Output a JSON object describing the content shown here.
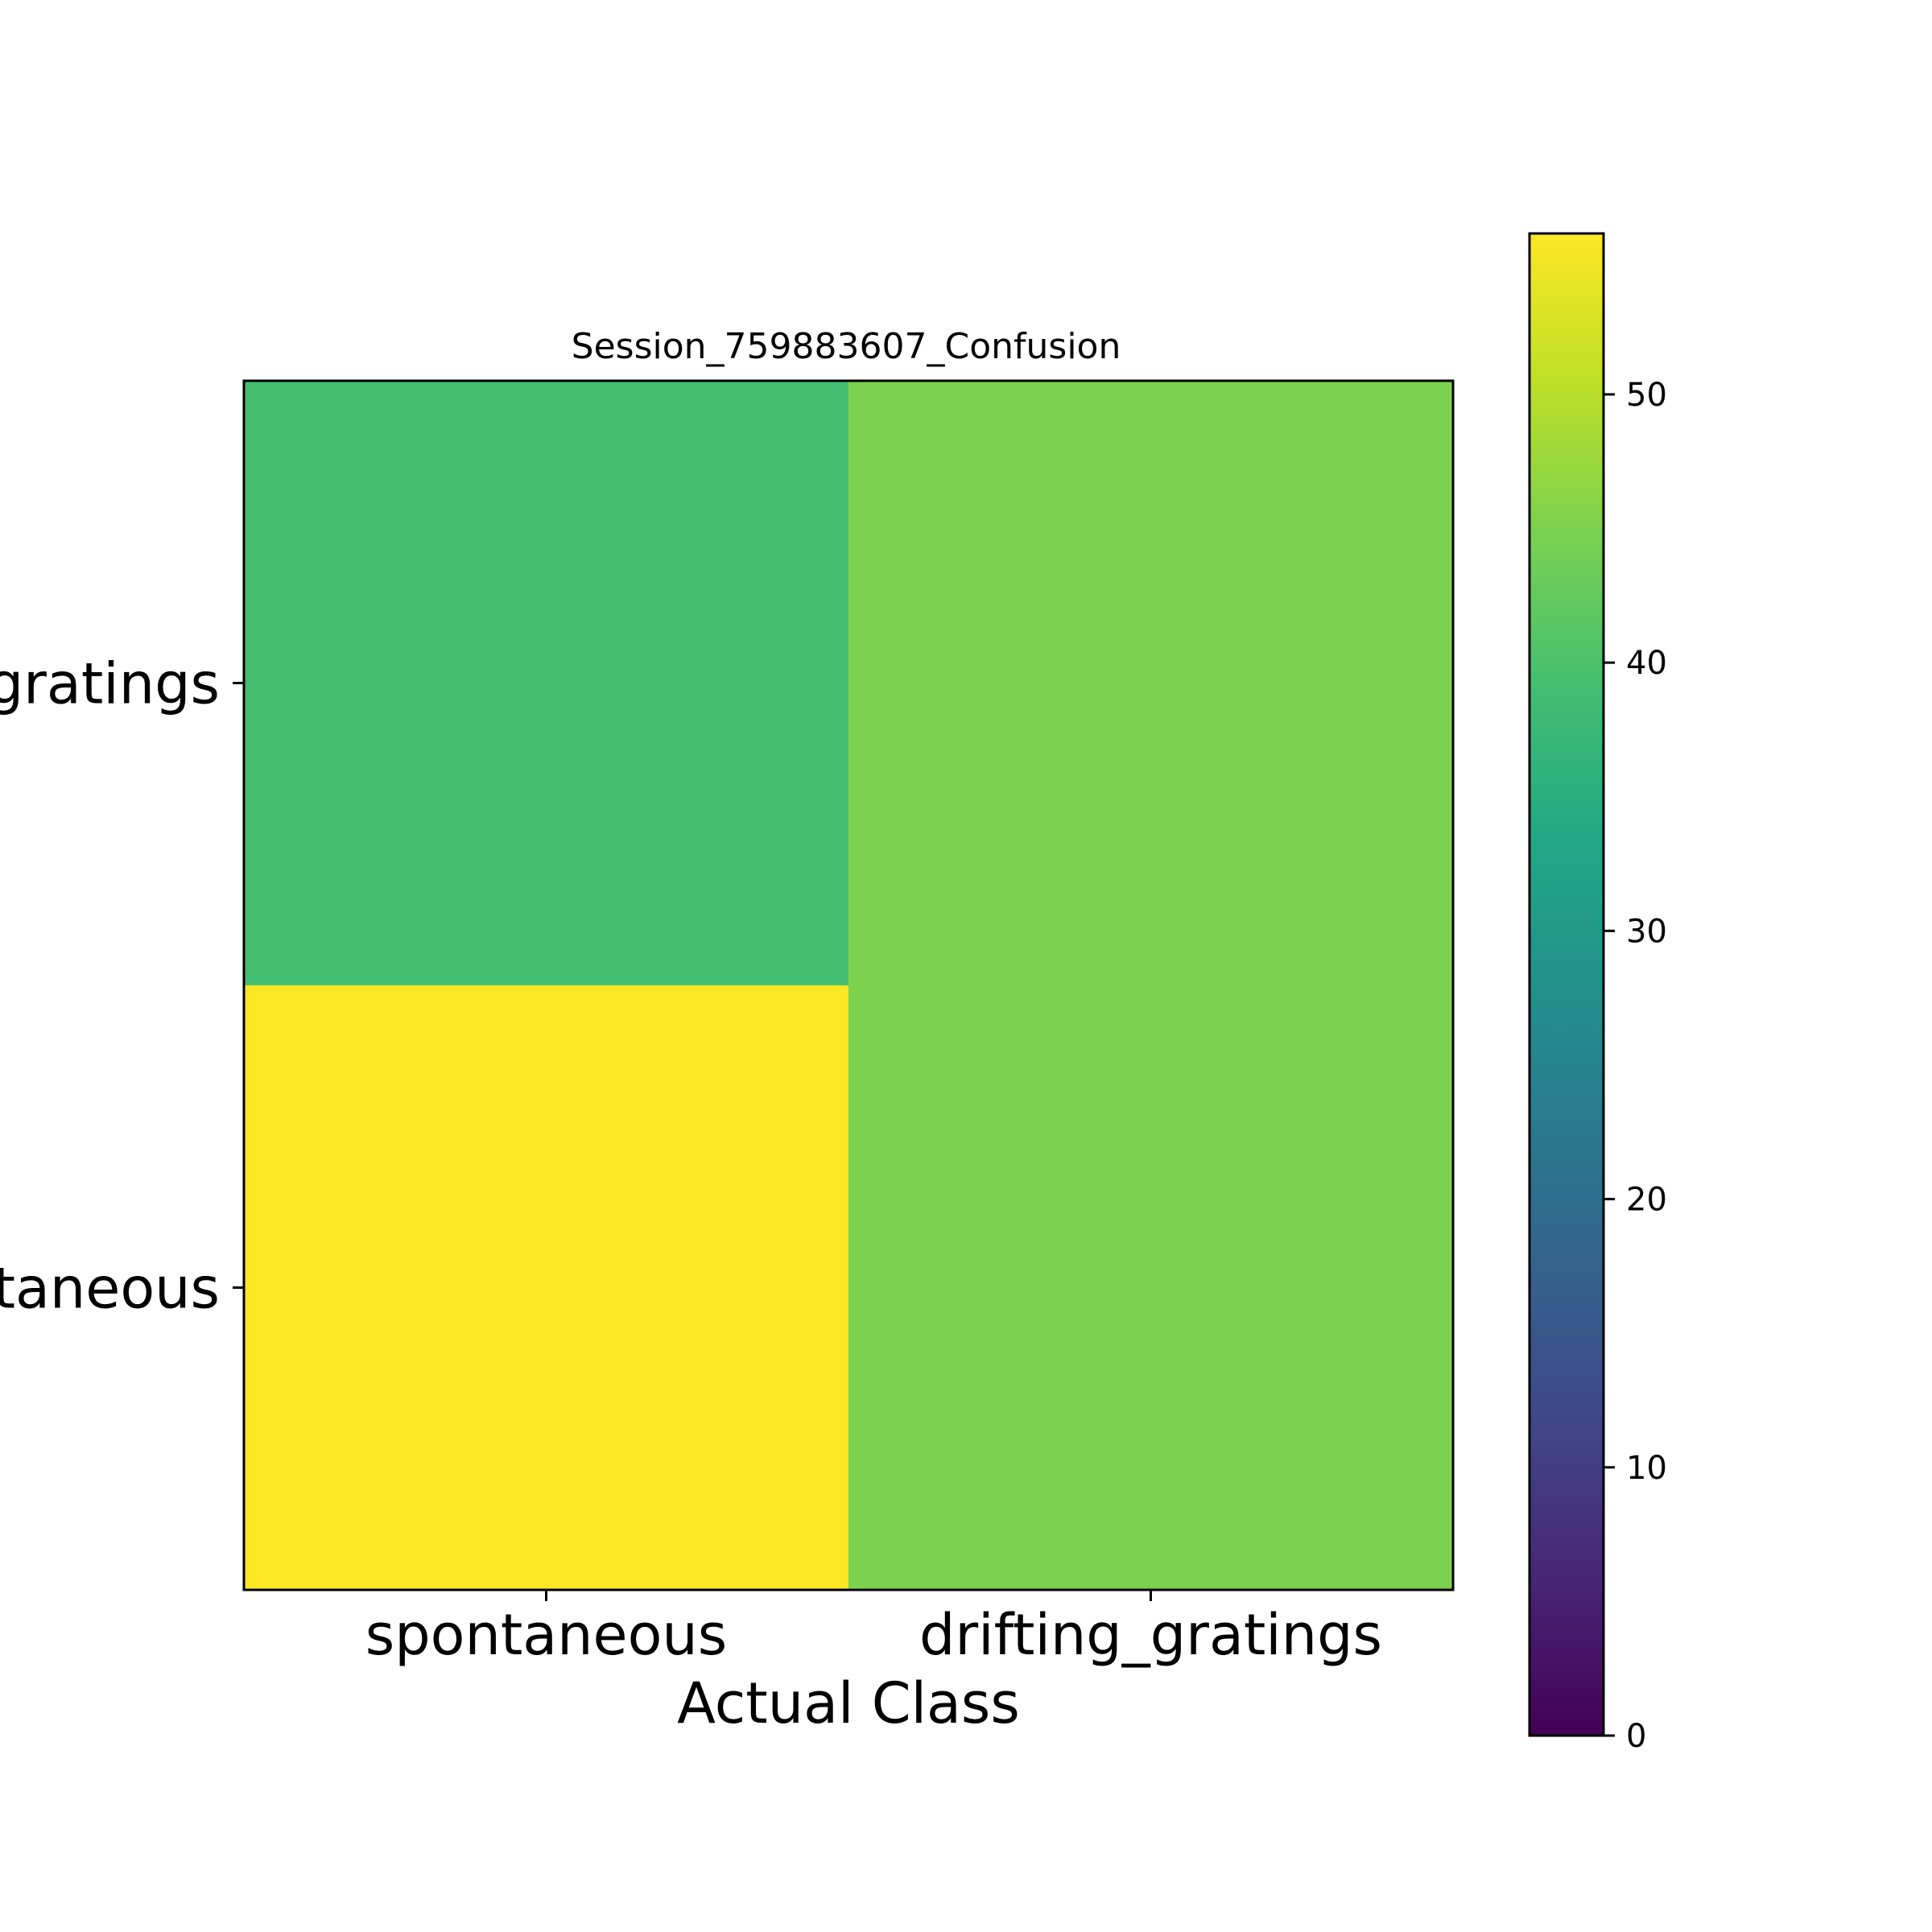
{
  "chart_data": {
    "type": "heatmap",
    "title": "Session_759883607_Confusion",
    "xlabel": "Actual Class",
    "ylabel": "",
    "x_categories": [
      "spontaneous",
      "drifting_gratings"
    ],
    "y_categories": [
      "drifting_gratings",
      "spontaneous"
    ],
    "values": [
      [
        39,
        45
      ],
      [
        56,
        45
      ]
    ],
    "colormap": "viridis",
    "colorbar": {
      "range": [
        0,
        56
      ],
      "ticks": [
        0,
        10,
        20,
        30,
        40,
        50
      ],
      "tick_labels": [
        "0",
        "10",
        "20",
        "30",
        "40",
        "50"
      ]
    },
    "grid": false,
    "legend": "none"
  }
}
